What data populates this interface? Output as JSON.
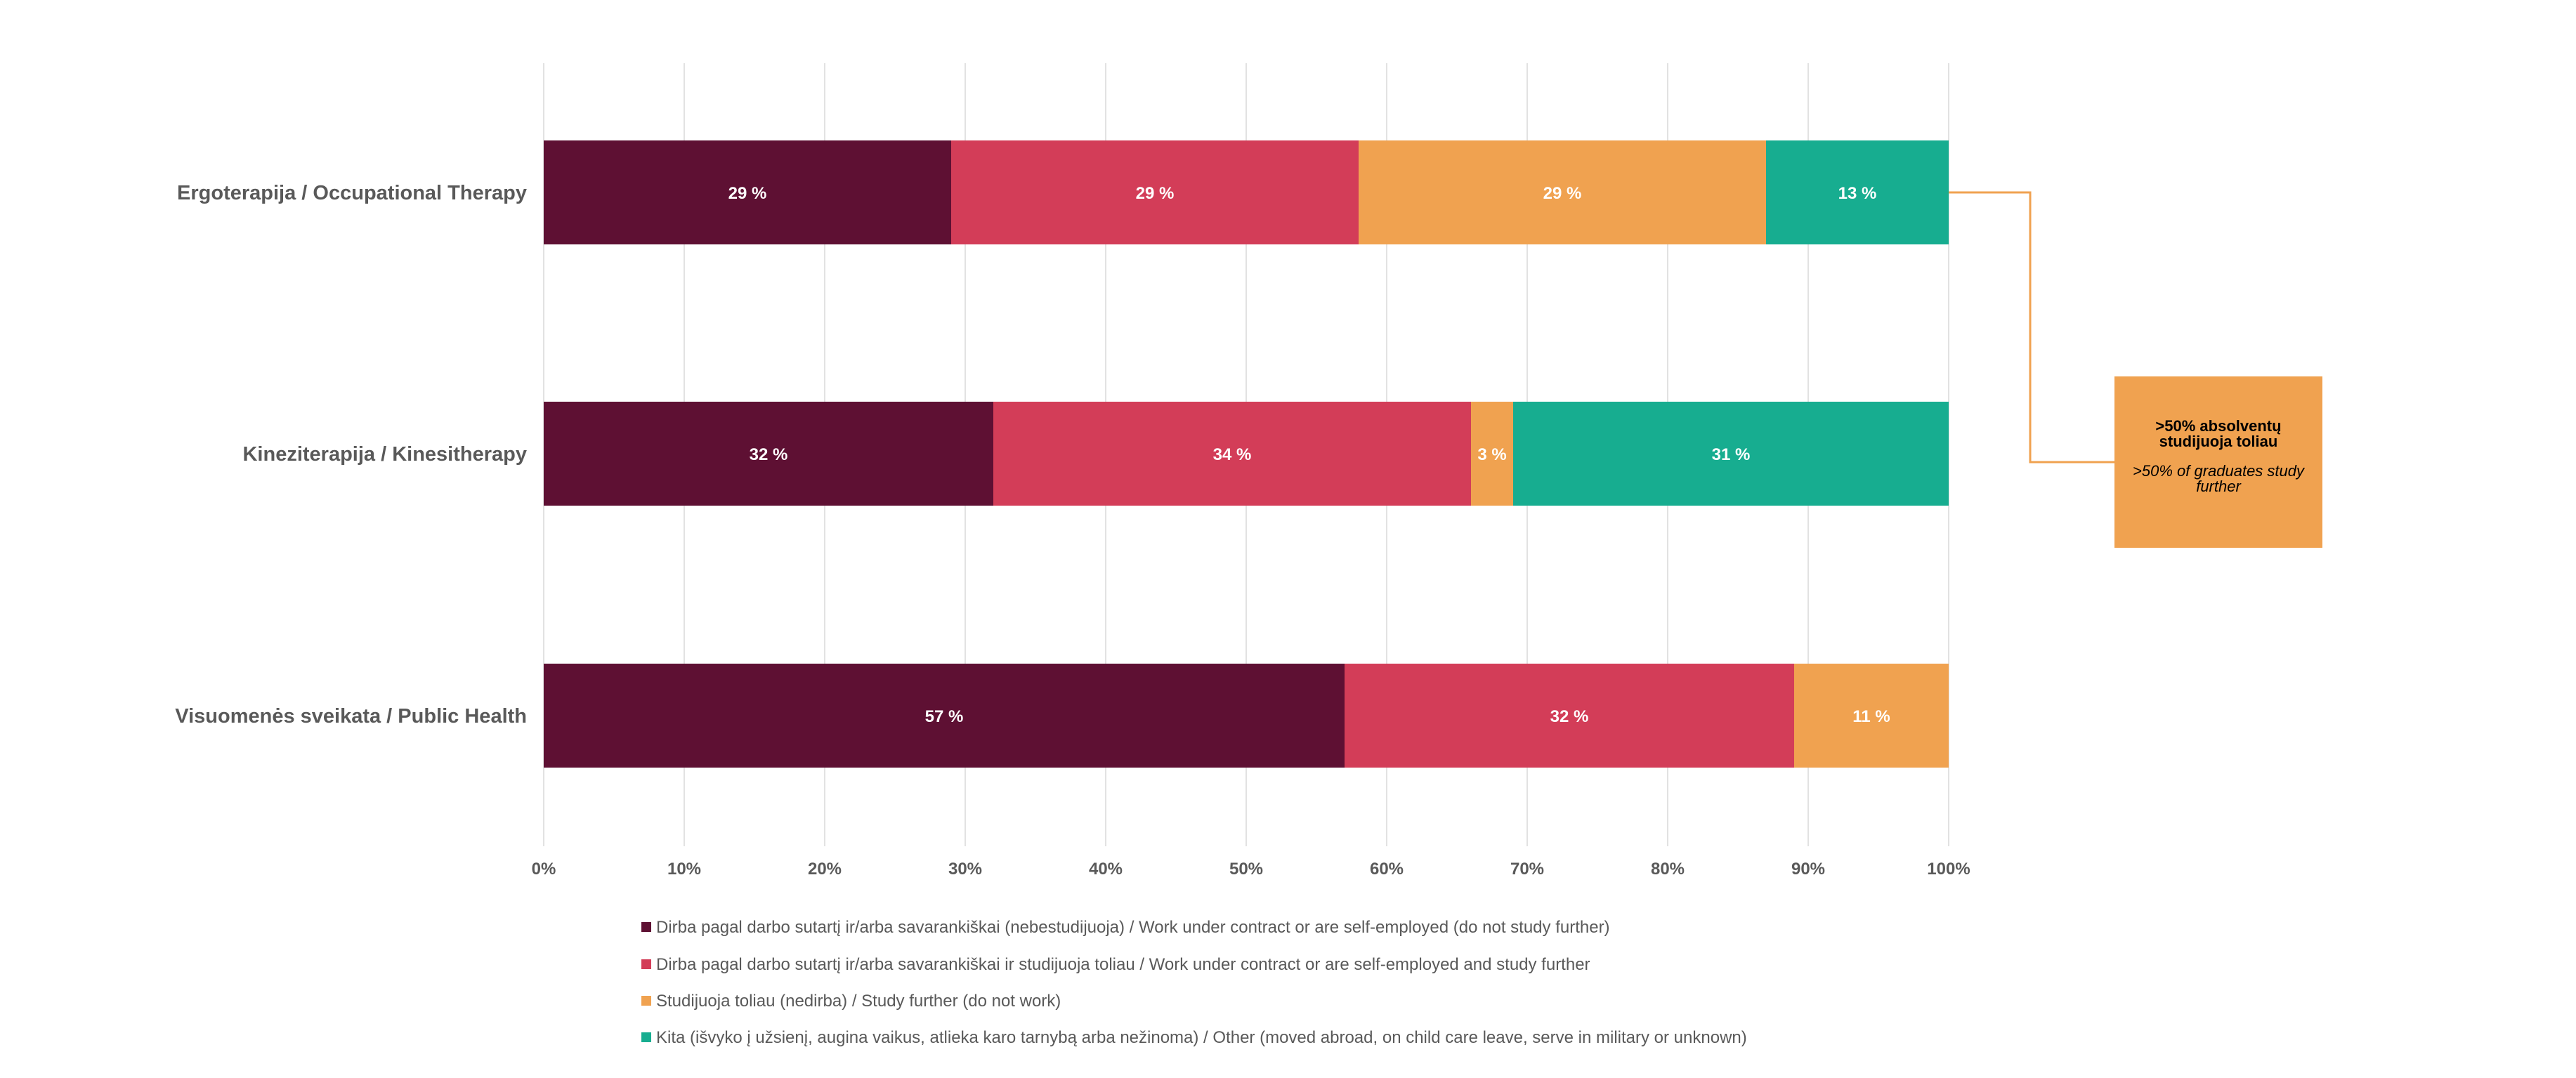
{
  "chart_data": {
    "type": "bar",
    "orientation": "horizontal",
    "stacked": true,
    "normalized": true,
    "categories": [
      "Ergoterapija / Occupational Therapy",
      "Kineziterapija / Kinesitherapy",
      "Visuomenės sveikata / Public Health"
    ],
    "series": [
      {
        "name": "Dirba pagal darbo sutartį ir/arba savarankiškai (nebestudijuoja) / Work under contract or are self-employed (do not study further)",
        "color": "#5e1033",
        "values": [
          29,
          32,
          57
        ],
        "labels": [
          "29 %",
          "32 %",
          "57 %"
        ]
      },
      {
        "name": "Dirba pagal darbo sutartį ir/arba savarankiškai  ir studijuoja toliau / Work under contract or are self-employed and study further",
        "color": "#d33d58",
        "values": [
          29,
          34,
          32
        ],
        "labels": [
          "29 %",
          "34 %",
          "32 %"
        ]
      },
      {
        "name": "Studijuoja toliau (nedirba) / Study further (do not work)",
        "color": "#f0a250",
        "values": [
          29,
          3,
          11
        ],
        "labels": [
          "29 %",
          "3 %",
          "11 %"
        ]
      },
      {
        "name": "Kita (išvyko į užsienį, augina vaikus, atlieka karo tarnybą arba nežinoma) / Other (moved abroad, on child care leave, serve in military or unknown)",
        "color": "#17ad90",
        "values": [
          13,
          31,
          0
        ],
        "labels": [
          "13 %",
          "31 %",
          ""
        ]
      }
    ],
    "xlim": [
      0,
      100
    ],
    "x_ticks": [
      0,
      10,
      20,
      30,
      40,
      50,
      60,
      70,
      80,
      90,
      100
    ],
    "x_tick_labels": [
      "0%",
      "10%",
      "20%",
      "30%",
      "40%",
      "50%",
      "60%",
      "70%",
      "80%",
      "90%",
      "100%"
    ],
    "grid": true,
    "legend_position": "bottom",
    "annotation": {
      "title": ">50% absolventų studijuoja toliau",
      "subtitle": ">50% of graduates study further",
      "color": "#f0a250"
    }
  }
}
